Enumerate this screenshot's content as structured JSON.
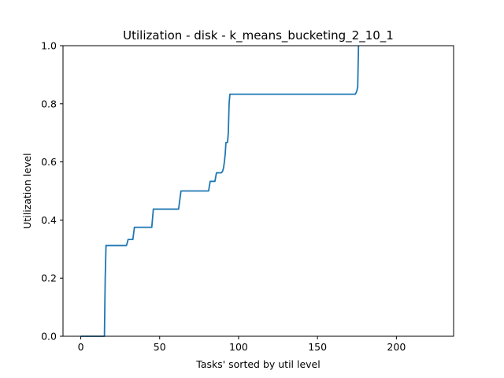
{
  "chart_data": {
    "type": "line",
    "title": "Utilization - disk - k_means_bucketing_2_10_1",
    "xlabel": "Tasks' sorted by util level",
    "ylabel": "Utilization level",
    "xlim": [
      -11.25,
      236.25
    ],
    "ylim": [
      0,
      1.0
    ],
    "xticks": [
      0,
      50,
      100,
      150,
      200
    ],
    "yticks": [
      0.0,
      0.2,
      0.4,
      0.6,
      0.8,
      1.0
    ],
    "xtick_labels": [
      "0",
      "50",
      "100",
      "150",
      "200"
    ],
    "ytick_labels": [
      "0.0",
      "0.2",
      "0.4",
      "0.6",
      "0.8",
      "1.0"
    ],
    "grid": false,
    "series": [
      {
        "color": "#1f77b4",
        "x": [
          0,
          15,
          15.5,
          16,
          29,
          30,
          33,
          34,
          45,
          46,
          62,
          63.5,
          81,
          82,
          85,
          86,
          89,
          89.5,
          90,
          90.5,
          91,
          91.5,
          92,
          92.5,
          93,
          93.5,
          94,
          94.5,
          174,
          175,
          175.5,
          176
        ],
        "y": [
          0,
          0,
          0.2,
          0.3125,
          0.3125,
          0.333,
          0.333,
          0.375,
          0.375,
          0.4375,
          0.4375,
          0.5,
          0.5,
          0.533,
          0.533,
          0.5625,
          0.5625,
          0.565,
          0.57,
          0.58,
          0.6,
          0.625,
          0.667,
          0.667,
          0.667,
          0.7,
          0.8,
          0.833,
          0.833,
          0.845,
          0.86,
          1.0
        ]
      }
    ]
  }
}
